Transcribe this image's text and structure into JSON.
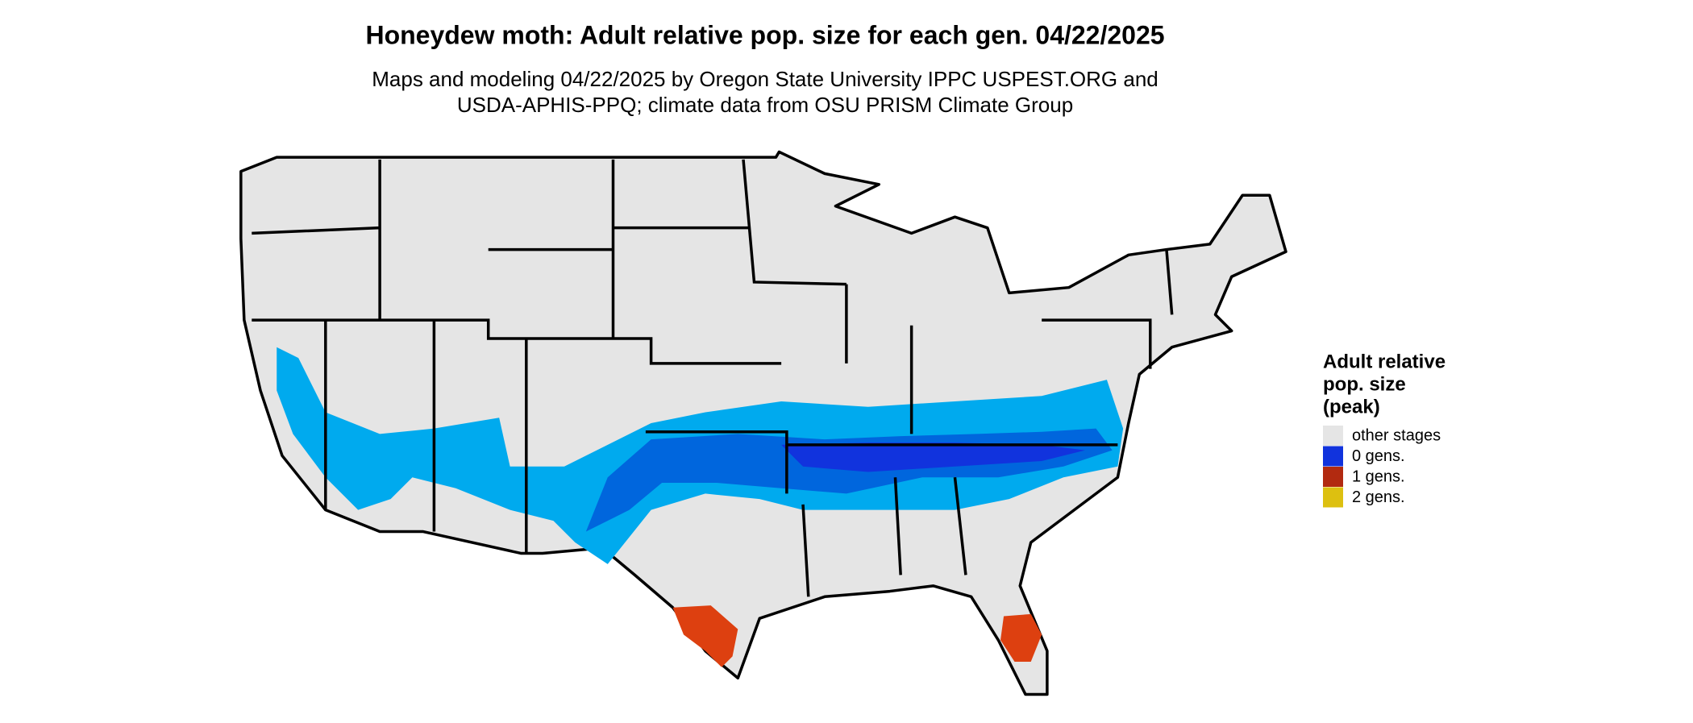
{
  "header": {
    "title": "Honeydew moth: Adult relative pop. size for each gen. 04/22/2025",
    "subtitle_lines": [
      "Maps and modeling 04/22/2025 by Oregon State University IPPC USPEST.ORG and",
      "USDA-APHIS-PPQ; climate data from OSU PRISM Climate Group"
    ]
  },
  "legend": {
    "title_lines": [
      "Adult relative",
      "pop. size",
      "(peak)"
    ],
    "items": [
      {
        "label": "other stages",
        "color": "#e5e5e5"
      },
      {
        "label": "0 gens.",
        "color": "#1133dd"
      },
      {
        "label": "1 gens.",
        "color": "#b22a10"
      },
      {
        "label": "2 gens.",
        "color": "#ddc010"
      }
    ]
  }
}
